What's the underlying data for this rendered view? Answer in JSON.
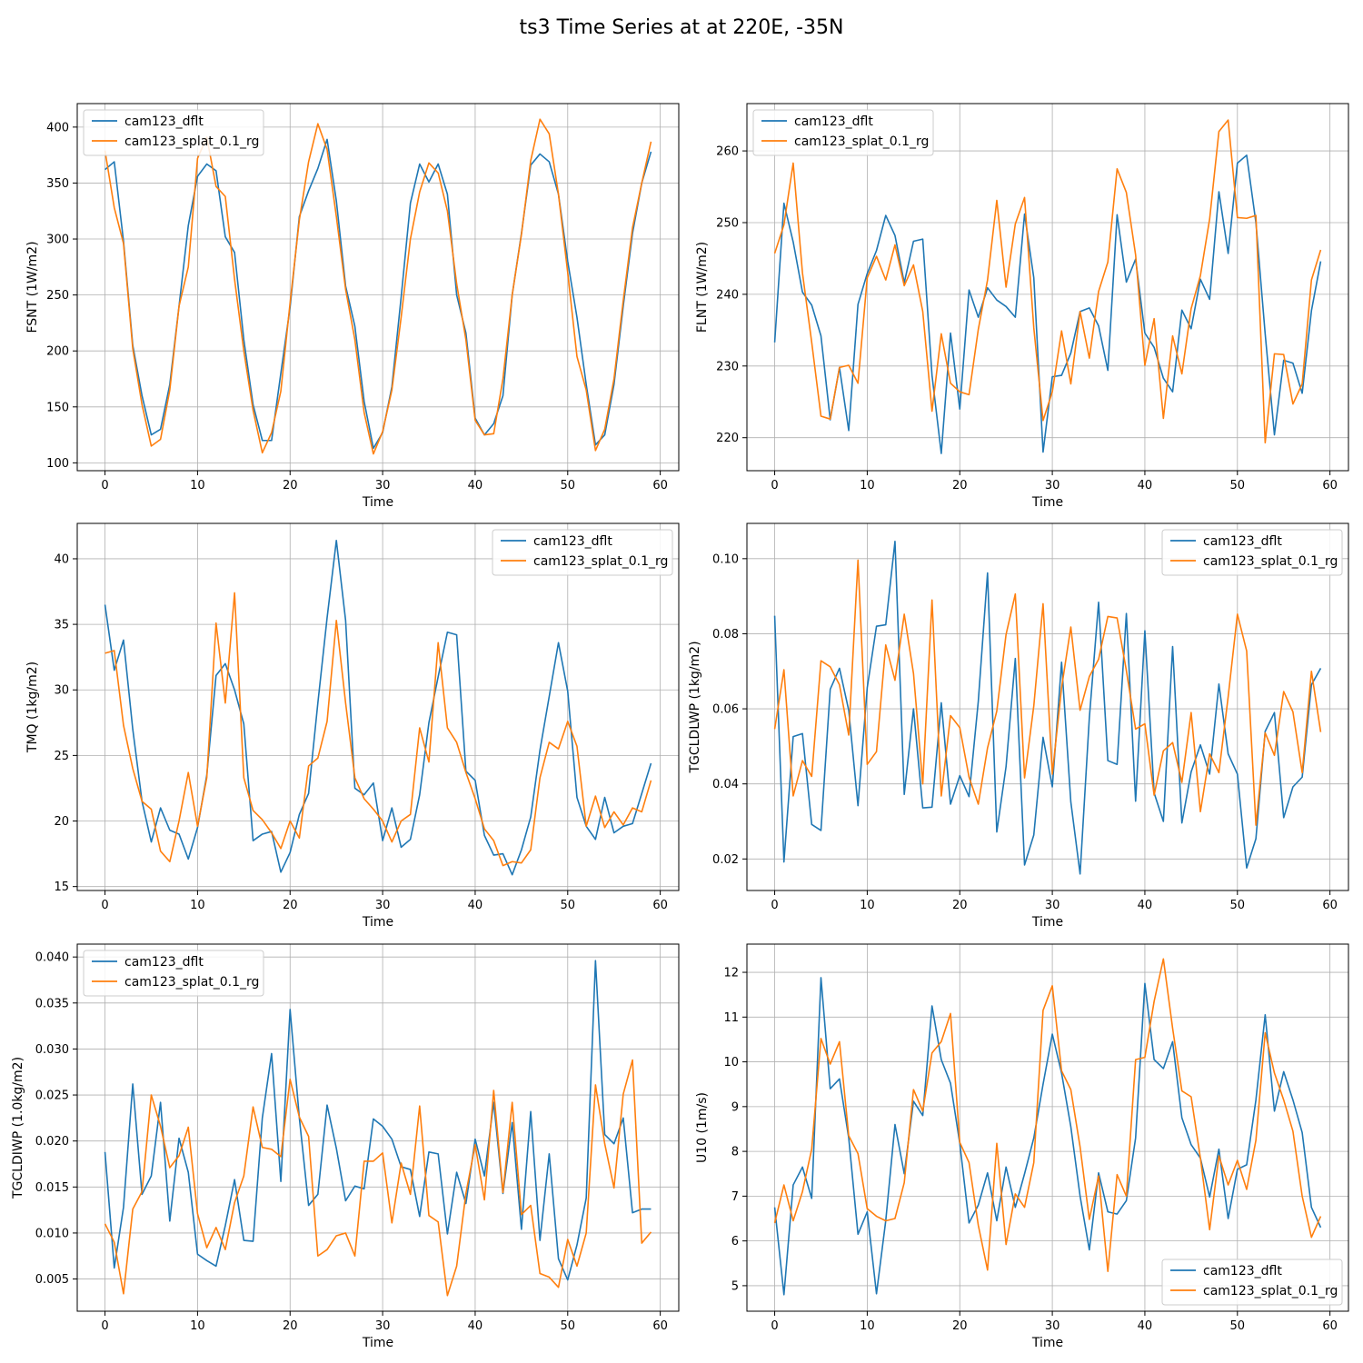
{
  "figure": {
    "title": "ts3 Time Series at at 220E, -35N"
  },
  "colors": {
    "series_1": "#1f77b4",
    "series_2": "#ff7f0e",
    "grid": "#b0b0b0",
    "axis": "#000000",
    "legend_border": "#cccccc"
  },
  "chart_data": [
    {
      "type": "line",
      "title": "",
      "xlabel": "Time",
      "ylabel": "FSNT (1W/m2)",
      "xlim": [
        -3,
        62
      ],
      "ylim": [
        93,
        421
      ],
      "xticks": [
        0,
        10,
        20,
        30,
        40,
        50,
        60
      ],
      "yticks": [
        100,
        150,
        200,
        250,
        300,
        350,
        400
      ],
      "tick_decimals": 0,
      "grid": true,
      "legend_loc": "upper-left",
      "series": [
        {
          "name": "cam123_dflt",
          "values": [
            362,
            369,
            298,
            205,
            160,
            125,
            130,
            170,
            240,
            312,
            356,
            367,
            361,
            302,
            288,
            210,
            152,
            120,
            120,
            180,
            239,
            320,
            343,
            363,
            389,
            334,
            258,
            222,
            155,
            113,
            127,
            168,
            248,
            332,
            367,
            351,
            367,
            340,
            250,
            216,
            140,
            125,
            135,
            160,
            250,
            305,
            366,
            376,
            369,
            340,
            280,
            230,
            170,
            116,
            125,
            170,
            240,
            305,
            350,
            378
          ]
        },
        {
          "name": "cam123_splat_0.1_rg",
          "values": [
            379,
            328,
            296,
            202,
            152,
            115,
            121,
            165,
            240,
            275,
            372,
            391,
            347,
            338,
            264,
            200,
            147,
            109,
            127,
            164,
            243,
            317,
            369,
            403,
            380,
            320,
            255,
            210,
            145,
            108,
            128,
            165,
            230,
            300,
            342,
            368,
            359,
            325,
            260,
            210,
            138,
            125,
            126,
            175,
            250,
            304,
            370,
            407,
            394,
            340,
            270,
            195,
            165,
            111,
            130,
            175,
            245,
            310,
            350,
            387
          ]
        }
      ]
    },
    {
      "type": "line",
      "title": "",
      "xlabel": "Time",
      "ylabel": "FLNT (1W/m2)",
      "xlim": [
        -3,
        62
      ],
      "ylim": [
        215.4,
        266.6
      ],
      "xticks": [
        0,
        10,
        20,
        30,
        40,
        50,
        60
      ],
      "yticks": [
        220,
        230,
        240,
        250,
        260
      ],
      "tick_decimals": 0,
      "grid": true,
      "legend_loc": "upper-left",
      "series": [
        {
          "name": "cam123_dflt",
          "values": [
            233.3,
            252.7,
            247.3,
            240.3,
            238.5,
            234.2,
            222.5,
            229.8,
            221.0,
            238.6,
            242.9,
            246.1,
            251.0,
            248.2,
            241.6,
            247.4,
            247.7,
            228.7,
            217.8,
            234.6,
            224.0,
            240.6,
            236.8,
            240.9,
            239.2,
            238.3,
            236.8,
            251.2,
            242.3,
            218.0,
            228.5,
            228.7,
            231.8,
            237.6,
            238.1,
            235.6,
            229.4,
            251.1,
            241.7,
            244.9,
            234.6,
            232.6,
            228.3,
            226.4,
            237.8,
            235.2,
            242.1,
            239.3,
            254.3,
            245.7,
            258.3,
            259.4,
            250.0,
            234.5,
            220.4,
            230.8,
            230.4,
            226.2,
            237.7,
            244.6
          ]
        },
        {
          "name": "cam123_splat_0.1_rg",
          "values": [
            245.7,
            249.7,
            258.3,
            243.0,
            233.3,
            223.0,
            222.6,
            229.8,
            230.1,
            227.6,
            242.3,
            245.3,
            242.0,
            246.9,
            241.2,
            244.1,
            237.6,
            223.7,
            234.5,
            227.6,
            226.4,
            226.0,
            235.1,
            242.0,
            253.1,
            241.0,
            249.8,
            253.5,
            235.3,
            222.4,
            226.4,
            234.9,
            227.5,
            237.6,
            231.1,
            240.4,
            244.5,
            257.5,
            254.2,
            245.5,
            230.1,
            236.6,
            222.7,
            234.2,
            228.9,
            238.0,
            242.6,
            250.5,
            262.7,
            264.3,
            250.7,
            250.6,
            251.0,
            219.3,
            231.7,
            231.6,
            224.7,
            227.5,
            242.0,
            246.2
          ]
        }
      ]
    },
    {
      "type": "line",
      "title": "",
      "xlabel": "Time",
      "ylabel": "TMQ (1kg/m2)",
      "xlim": [
        -3,
        62
      ],
      "ylim": [
        14.7,
        42.7
      ],
      "xticks": [
        0,
        10,
        20,
        30,
        40,
        50,
        60
      ],
      "yticks": [
        15,
        20,
        25,
        30,
        35,
        40
      ],
      "tick_decimals": 0,
      "grid": true,
      "legend_loc": "upper-right",
      "series": [
        {
          "name": "cam123_dflt",
          "values": [
            36.5,
            31.5,
            33.8,
            27.0,
            21.5,
            18.4,
            21.0,
            19.3,
            19.0,
            17.1,
            19.5,
            23.5,
            31.1,
            32.0,
            30.0,
            27.4,
            18.5,
            19.0,
            19.2,
            16.1,
            17.6,
            20.5,
            22.1,
            29.0,
            35.5,
            41.4,
            35.3,
            22.5,
            22.0,
            22.9,
            18.5,
            21.0,
            18.0,
            18.6,
            22.0,
            27.5,
            31.0,
            34.4,
            34.2,
            23.8,
            23.1,
            18.9,
            17.4,
            17.5,
            15.9,
            17.8,
            20.3,
            25.4,
            29.5,
            33.6,
            29.9,
            21.8,
            19.6,
            18.6,
            21.8,
            19.1,
            19.6,
            19.8,
            22.1,
            24.4
          ]
        },
        {
          "name": "cam123_splat_0.1_rg",
          "values": [
            32.8,
            33.0,
            27.3,
            24.0,
            21.5,
            20.9,
            17.7,
            16.9,
            20.0,
            23.7,
            19.6,
            23.3,
            35.1,
            29.0,
            37.4,
            23.3,
            20.8,
            20.1,
            19.1,
            17.9,
            20.0,
            18.7,
            24.2,
            24.8,
            27.6,
            35.3,
            29.0,
            23.3,
            21.7,
            20.9,
            20.0,
            18.4,
            20.0,
            20.5,
            27.1,
            24.5,
            33.6,
            27.1,
            26.0,
            23.7,
            21.7,
            19.4,
            18.5,
            16.6,
            16.9,
            16.8,
            17.8,
            23.3,
            26.0,
            25.5,
            27.6,
            25.7,
            19.6,
            21.9,
            19.5,
            20.7,
            19.7,
            21.0,
            20.7,
            23.1
          ]
        }
      ]
    },
    {
      "type": "line",
      "title": "",
      "xlabel": "Time",
      "ylabel": "TGCLDLWP (1kg/m2)",
      "xlim": [
        -3,
        62
      ],
      "ylim": [
        0.0116,
        0.1094
      ],
      "xticks": [
        0,
        10,
        20,
        30,
        40,
        50,
        60
      ],
      "yticks": [
        0.02,
        0.04,
        0.06,
        0.08,
        0.1
      ],
      "tick_decimals": 2,
      "grid": true,
      "legend_loc": "upper-right",
      "series": [
        {
          "name": "cam123_dflt",
          "values": [
            0.0848,
            0.0192,
            0.0526,
            0.0534,
            0.0292,
            0.0276,
            0.0652,
            0.0708,
            0.0596,
            0.0342,
            0.0656,
            0.082,
            0.0824,
            0.1046,
            0.0372,
            0.06,
            0.0336,
            0.0338,
            0.0616,
            0.0346,
            0.0422,
            0.0366,
            0.062,
            0.0962,
            0.0272,
            0.0446,
            0.0734,
            0.0184,
            0.0264,
            0.0524,
            0.0392,
            0.0724,
            0.0352,
            0.016,
            0.0576,
            0.0884,
            0.0462,
            0.0452,
            0.0854,
            0.0354,
            0.0808,
            0.0376,
            0.03,
            0.0766,
            0.0296,
            0.0432,
            0.0504,
            0.0426,
            0.0666,
            0.048,
            0.0426,
            0.0176,
            0.0254,
            0.054,
            0.059,
            0.031,
            0.0392,
            0.0418,
            0.0664,
            0.0708
          ]
        },
        {
          "name": "cam123_splat_0.1_rg",
          "values": [
            0.0546,
            0.0704,
            0.0368,
            0.0462,
            0.042,
            0.0728,
            0.0712,
            0.0664,
            0.053,
            0.0996,
            0.0452,
            0.0486,
            0.077,
            0.0676,
            0.0852,
            0.0694,
            0.04,
            0.089,
            0.0368,
            0.0582,
            0.055,
            0.0418,
            0.0346,
            0.0496,
            0.0594,
            0.0798,
            0.0906,
            0.0416,
            0.0608,
            0.088,
            0.0426,
            0.0656,
            0.0818,
            0.0596,
            0.0686,
            0.0732,
            0.0846,
            0.0842,
            0.0702,
            0.0546,
            0.056,
            0.037,
            0.0488,
            0.051,
            0.0404,
            0.059,
            0.0326,
            0.048,
            0.043,
            0.0632,
            0.0852,
            0.0754,
            0.029,
            0.0536,
            0.0476,
            0.0646,
            0.0592,
            0.043,
            0.07,
            0.0538
          ]
        }
      ]
    },
    {
      "type": "line",
      "title": "",
      "xlabel": "Time",
      "ylabel": "TGCLDIWP (1.0kg/m2)",
      "xlim": [
        -3,
        62
      ],
      "ylim": [
        0.0015,
        0.0414
      ],
      "xticks": [
        0,
        10,
        20,
        30,
        40,
        50,
        60
      ],
      "yticks": [
        0.005,
        0.01,
        0.015,
        0.02,
        0.025,
        0.03,
        0.035,
        0.04
      ],
      "tick_decimals": 3,
      "grid": true,
      "legend_loc": "upper-left",
      "series": [
        {
          "name": "cam123_dflt",
          "values": [
            0.0188,
            0.0062,
            0.0128,
            0.0262,
            0.0142,
            0.0162,
            0.0242,
            0.0113,
            0.0203,
            0.0166,
            0.0077,
            0.007,
            0.0064,
            0.0108,
            0.0158,
            0.0092,
            0.0091,
            0.0225,
            0.0295,
            0.0156,
            0.0343,
            0.0225,
            0.013,
            0.0142,
            0.0239,
            0.0192,
            0.0135,
            0.0151,
            0.0148,
            0.0224,
            0.0216,
            0.0202,
            0.0172,
            0.0169,
            0.0118,
            0.0188,
            0.0186,
            0.0099,
            0.0166,
            0.0132,
            0.0202,
            0.0162,
            0.0242,
            0.0143,
            0.022,
            0.0104,
            0.0232,
            0.0092,
            0.0186,
            0.0072,
            0.0049,
            0.0087,
            0.0138,
            0.0396,
            0.0207,
            0.0197,
            0.0225,
            0.0122,
            0.0126,
            0.0126
          ]
        },
        {
          "name": "cam123_splat_0.1_rg",
          "values": [
            0.011,
            0.009,
            0.0034,
            0.0126,
            0.0145,
            0.025,
            0.0216,
            0.0171,
            0.0184,
            0.0215,
            0.0121,
            0.0084,
            0.0106,
            0.0082,
            0.0133,
            0.0162,
            0.0237,
            0.0193,
            0.0191,
            0.0183,
            0.0267,
            0.0226,
            0.0205,
            0.0075,
            0.0082,
            0.0097,
            0.01,
            0.0075,
            0.0178,
            0.0178,
            0.0187,
            0.0111,
            0.0176,
            0.0142,
            0.0238,
            0.0119,
            0.0112,
            0.0032,
            0.0064,
            0.0143,
            0.0196,
            0.0136,
            0.0255,
            0.0144,
            0.0242,
            0.012,
            0.013,
            0.0056,
            0.0052,
            0.0041,
            0.0093,
            0.0064,
            0.01,
            0.0261,
            0.0197,
            0.0149,
            0.0251,
            0.0288,
            0.0089,
            0.0101
          ]
        }
      ]
    },
    {
      "type": "line",
      "title": "",
      "xlabel": "Time",
      "ylabel": "U10 (1m/s)",
      "xlim": [
        -3,
        62
      ],
      "ylim": [
        4.43,
        12.63
      ],
      "xticks": [
        0,
        10,
        20,
        30,
        40,
        50,
        60
      ],
      "yticks": [
        5,
        6,
        7,
        8,
        9,
        10,
        11,
        12
      ],
      "tick_decimals": 0,
      "grid": true,
      "legend_loc": "lower-right",
      "series": [
        {
          "name": "cam123_dflt",
          "values": [
            6.75,
            4.8,
            7.25,
            7.65,
            6.95,
            11.88,
            9.4,
            9.62,
            8.3,
            6.15,
            6.65,
            4.82,
            6.45,
            8.6,
            7.5,
            9.12,
            8.8,
            11.25,
            10.05,
            9.52,
            8.18,
            6.4,
            6.8,
            7.52,
            6.45,
            7.65,
            6.75,
            7.5,
            8.3,
            9.5,
            10.62,
            9.75,
            8.55,
            7.0,
            5.8,
            7.52,
            6.65,
            6.6,
            6.9,
            8.3,
            11.75,
            10.05,
            9.85,
            10.45,
            8.75,
            8.15,
            7.85,
            6.98,
            8.05,
            6.5,
            7.6,
            7.7,
            9.15,
            11.05,
            8.9,
            9.78,
            9.15,
            8.42,
            6.75,
            6.3
          ]
        },
        {
          "name": "cam123_splat_0.1_rg",
          "values": [
            6.4,
            7.25,
            6.45,
            7.1,
            8.05,
            10.52,
            9.95,
            10.45,
            8.35,
            7.95,
            6.72,
            6.55,
            6.45,
            6.5,
            7.3,
            9.38,
            8.9,
            10.2,
            10.45,
            11.08,
            8.2,
            7.75,
            6.35,
            5.35,
            8.18,
            5.92,
            7.05,
            6.75,
            7.75,
            11.15,
            11.7,
            9.8,
            9.38,
            8.1,
            6.48,
            7.45,
            5.32,
            7.48,
            7.0,
            10.05,
            10.1,
            11.35,
            12.3,
            10.75,
            9.35,
            9.22,
            7.85,
            6.25,
            7.9,
            7.25,
            7.8,
            7.15,
            8.25,
            10.65,
            9.75,
            9.15,
            8.45,
            7.0,
            6.08,
            6.55
          ]
        }
      ]
    }
  ]
}
